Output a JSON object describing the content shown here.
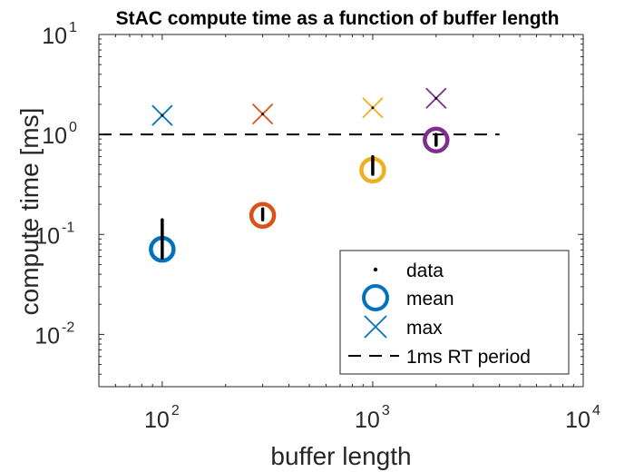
{
  "chart_data": {
    "type": "scatter",
    "title": "StAC compute time as a function of buffer length",
    "xlabel": "buffer length",
    "ylabel": "compute time [ms]",
    "xscale": "log",
    "yscale": "log",
    "xlim": [
      50,
      10000
    ],
    "ylim": [
      0.003,
      10
    ],
    "xticks": [
      {
        "base": "10",
        "exp": "2",
        "value": 100
      },
      {
        "base": "10",
        "exp": "3",
        "value": 1000
      },
      {
        "base": "10",
        "exp": "4",
        "value": 10000
      }
    ],
    "yticks": [
      {
        "base": "10",
        "exp": "-2",
        "value": 0.01
      },
      {
        "base": "10",
        "exp": "-1",
        "value": 0.1
      },
      {
        "base": "10",
        "exp": "0",
        "value": 1
      },
      {
        "base": "10",
        "exp": "1",
        "value": 10
      }
    ],
    "grid": false,
    "legend_placement": "bottom-right",
    "series": [
      {
        "name": "data",
        "marker": "dot",
        "color": "#000000",
        "points": [
          {
            "x": 100,
            "ymin": 0.058,
            "ymax": 0.14
          },
          {
            "x": 300,
            "ymin": 0.14,
            "ymax": 0.18
          },
          {
            "x": 1000,
            "ymin": 0.4,
            "ymax": 0.6
          },
          {
            "x": 2000,
            "ymin": 0.78,
            "ymax": 1.0
          }
        ]
      },
      {
        "name": "mean",
        "marker": "circle",
        "points": [
          {
            "x": 100,
            "y": 0.071,
            "color": "#0072BD"
          },
          {
            "x": 300,
            "y": 0.155,
            "color": "#D95319"
          },
          {
            "x": 1000,
            "y": 0.44,
            "color": "#EDB120"
          },
          {
            "x": 2000,
            "y": 0.88,
            "color": "#7E2F8E"
          }
        ]
      },
      {
        "name": "max",
        "marker": "x",
        "points": [
          {
            "x": 100,
            "y": 1.55,
            "color": "#0072BD"
          },
          {
            "x": 300,
            "y": 1.6,
            "color": "#D95319"
          },
          {
            "x": 1000,
            "y": 1.85,
            "color": "#EDB120"
          },
          {
            "x": 2000,
            "y": 2.3,
            "color": "#7E2F8E"
          }
        ]
      },
      {
        "name": "1ms RT period",
        "type": "line",
        "style": "dashed",
        "color": "#000000",
        "y": 1,
        "x_range": [
          50,
          4000
        ]
      }
    ],
    "legend": [
      "data",
      "mean",
      "max",
      "1ms RT period"
    ],
    "legend_icon_color_mean": "#0072BD",
    "legend_icon_color_max": "#0072BD"
  }
}
